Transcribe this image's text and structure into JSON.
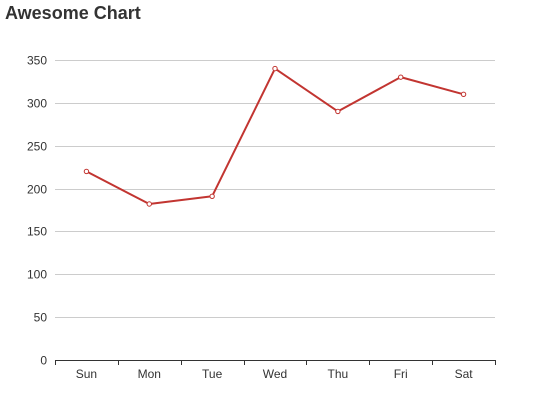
{
  "chart_data": {
    "type": "line",
    "title": "Awesome Chart",
    "xlabel": "",
    "ylabel": "",
    "categories": [
      "Sun",
      "Mon",
      "Tue",
      "Wed",
      "Thu",
      "Fri",
      "Sat"
    ],
    "series": [
      {
        "values": [
          220,
          182,
          191,
          340,
          290,
          330,
          310
        ],
        "color": "#c23531"
      }
    ],
    "ylim": [
      0,
      350
    ],
    "yticks": [
      0,
      50,
      100,
      150,
      200,
      250,
      300,
      350
    ],
    "grid": true,
    "legend": "none",
    "colors": {
      "line": "#c23531",
      "grid": "#cccccc",
      "axis": "#333333",
      "text": "#333333"
    }
  }
}
